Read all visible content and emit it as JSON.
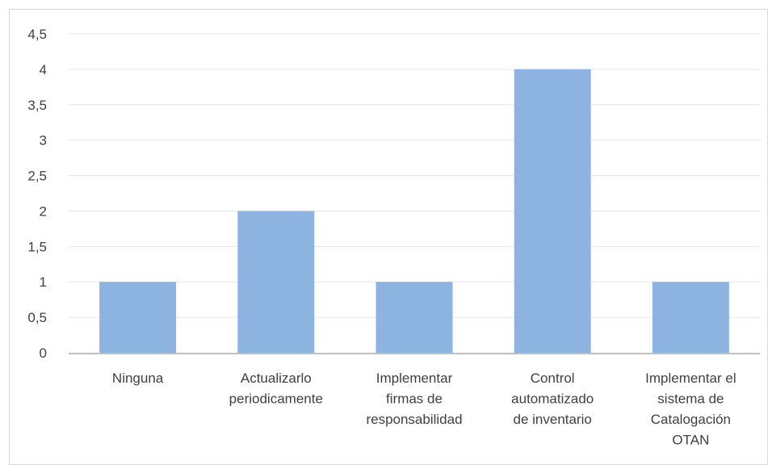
{
  "chart_data": {
    "type": "bar",
    "title": "",
    "xlabel": "",
    "ylabel": "",
    "categories": [
      "Ninguna",
      "Actualizarlo periodicamente",
      "Implementar firmas de responsabilidad",
      "Control automatizado de inventario",
      "Implementar el sistema de Catalogación OTAN"
    ],
    "category_lines": [
      [
        "Ninguna"
      ],
      [
        "Actualizarlo",
        "periodicamente"
      ],
      [
        "Implementar",
        "firmas de",
        "responsabilidad"
      ],
      [
        "Control",
        "automatizado",
        "de inventario"
      ],
      [
        "Implementar el",
        "sistema de",
        "Catalogación",
        "OTAN"
      ]
    ],
    "values": [
      1,
      2,
      1,
      4,
      1
    ],
    "ylim": [
      0,
      4.5
    ],
    "yticks": [
      0,
      0.5,
      1,
      1.5,
      2,
      2.5,
      3,
      3.5,
      4,
      4.5
    ],
    "ytick_labels": [
      "0",
      "0,5",
      "1",
      "1,5",
      "2",
      "2,5",
      "3",
      "3,5",
      "4",
      "4,5"
    ],
    "grid": true,
    "legend": "none",
    "colors": {
      "bar": "#8db4e0",
      "grid": "#e6e6e6",
      "axis": "#bfbfbf",
      "text": "#404040"
    }
  }
}
